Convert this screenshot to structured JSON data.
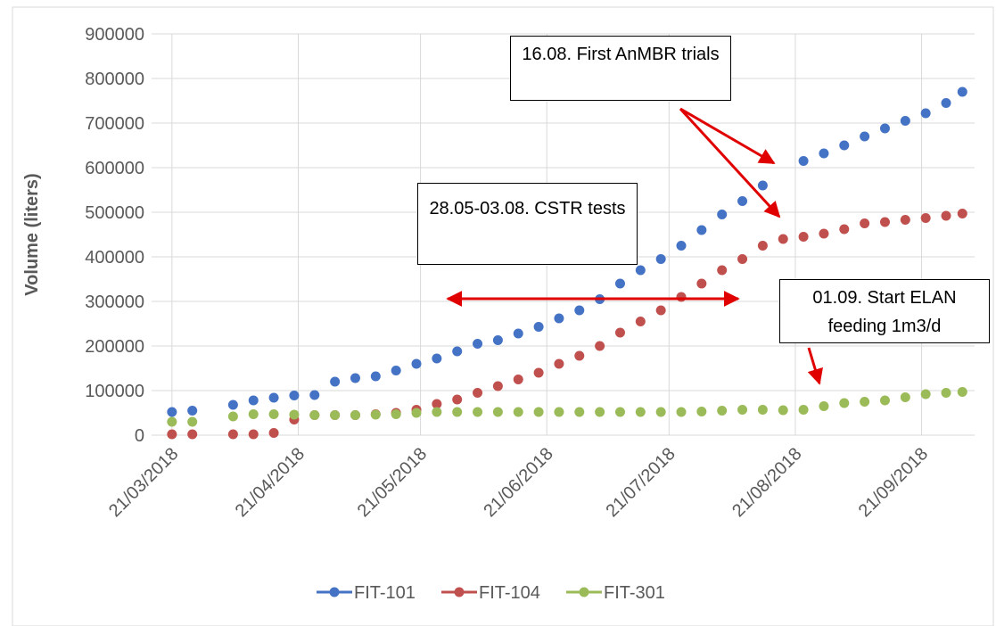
{
  "chart_data": {
    "type": "scatter",
    "y_label": "Volume (liters)",
    "x": [
      "21/03/2018",
      "26/03/2018",
      "31/03/2018",
      "05/04/2018",
      "10/04/2018",
      "15/04/2018",
      "20/04/2018",
      "25/04/2018",
      "30/04/2018",
      "05/05/2018",
      "10/05/2018",
      "15/05/2018",
      "20/05/2018",
      "25/05/2018",
      "30/05/2018",
      "04/06/2018",
      "09/06/2018",
      "14/06/2018",
      "19/06/2018",
      "24/06/2018",
      "29/06/2018",
      "04/07/2018",
      "09/07/2018",
      "14/07/2018",
      "19/07/2018",
      "24/07/2018",
      "29/07/2018",
      "03/08/2018",
      "08/08/2018",
      "13/08/2018",
      "18/08/2018",
      "23/08/2018",
      "28/08/2018",
      "02/09/2018",
      "07/09/2018",
      "12/09/2018",
      "17/09/2018",
      "22/09/2018",
      "27/09/2018",
      "01/10/2018"
    ],
    "series": [
      {
        "name": "FIT-101",
        "color": "#4472c4",
        "values": [
          52000,
          55000,
          null,
          68000,
          78000,
          84000,
          89000,
          90000,
          120000,
          128000,
          132000,
          145000,
          160000,
          172000,
          188000,
          205000,
          213000,
          228000,
          243000,
          262000,
          280000,
          305000,
          340000,
          370000,
          395000,
          425000,
          460000,
          495000,
          525000,
          560000,
          null,
          615000,
          632000,
          650000,
          670000,
          688000,
          705000,
          722000,
          745000,
          770000
        ]
      },
      {
        "name": "FIT-104",
        "color": "#c0504d",
        "values": [
          2000,
          2000,
          null,
          2000,
          2000,
          5000,
          35000,
          45000,
          45000,
          45000,
          47000,
          50000,
          57000,
          70000,
          80000,
          95000,
          110000,
          125000,
          140000,
          160000,
          178000,
          200000,
          230000,
          255000,
          280000,
          310000,
          340000,
          370000,
          395000,
          425000,
          440000,
          445000,
          452000,
          462000,
          475000,
          478000,
          483000,
          487000,
          492000,
          497000
        ]
      },
      {
        "name": "FIT-301",
        "color": "#9bbb59",
        "values": [
          30000,
          30000,
          null,
          42000,
          47000,
          47000,
          46000,
          45000,
          45000,
          45000,
          46000,
          47000,
          50000,
          52000,
          52000,
          52000,
          52000,
          52000,
          52000,
          52000,
          52000,
          52000,
          52000,
          52000,
          52000,
          52000,
          53000,
          55000,
          57000,
          57000,
          56000,
          57000,
          65000,
          72000,
          75000,
          78000,
          85000,
          92000,
          95000,
          97000
        ]
      }
    ],
    "xlim": [
      "16/03/2018",
      "04/10/2018"
    ],
    "xticks": [
      "21/03/2018",
      "21/04/2018",
      "21/05/2018",
      "21/06/2018",
      "21/07/2018",
      "21/08/2018",
      "21/09/2018"
    ],
    "ylim": [
      0,
      900000
    ],
    "yticks": [
      0,
      100000,
      200000,
      300000,
      400000,
      500000,
      600000,
      700000,
      800000,
      900000
    ],
    "grid": true,
    "legend": "bottom",
    "annotations": [
      "16.08. First AnMBR trials",
      "28.05-03.08. CSTR tests",
      "01.09. Start ELAN feeding 1m3/d"
    ]
  }
}
